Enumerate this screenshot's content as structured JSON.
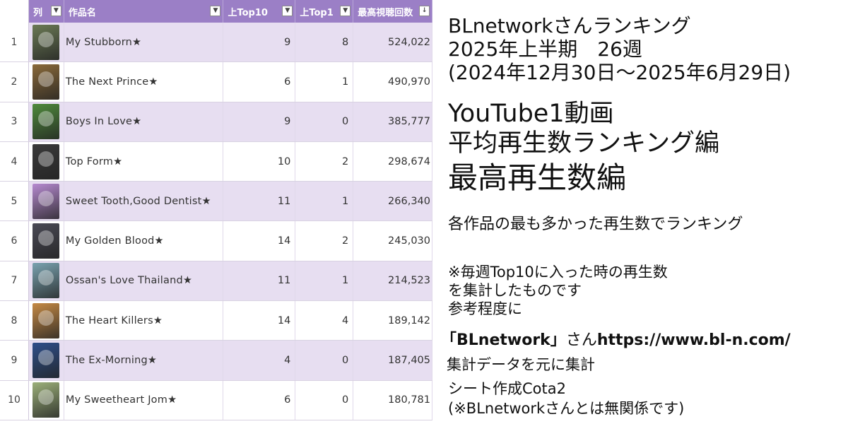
{
  "sheet": {
    "headers": {
      "rank": "列",
      "title": "作品名",
      "top10": "上Top10",
      "top1": "上Top1",
      "max": "最高視聴回数"
    },
    "rows": [
      {
        "num": "1",
        "title": "My Stubborn★",
        "top10": "9",
        "top1": "8",
        "max": "524,022",
        "thumb_color": "#6b7a55"
      },
      {
        "num": "2",
        "title": "The Next Prince★",
        "top10": "6",
        "top1": "1",
        "max": "490,970",
        "thumb_color": "#8a6a3a"
      },
      {
        "num": "3",
        "title": "Boys In Love★",
        "top10": "9",
        "top1": "0",
        "max": "385,777",
        "thumb_color": "#4f8a3c"
      },
      {
        "num": "4",
        "title": "Top Form★",
        "top10": "10",
        "top1": "2",
        "max": "298,674",
        "thumb_color": "#3a3a3a"
      },
      {
        "num": "5",
        "title": "Sweet Tooth,Good Dentist★",
        "top10": "11",
        "top1": "1",
        "max": "266,340",
        "thumb_color": "#b68ad0"
      },
      {
        "num": "6",
        "title": "My Golden Blood★",
        "top10": "14",
        "top1": "2",
        "max": "245,030",
        "thumb_color": "#4a4a55"
      },
      {
        "num": "7",
        "title": "Ossan's Love Thailand★",
        "top10": "11",
        "top1": "1",
        "max": "214,523",
        "thumb_color": "#7aa3b0"
      },
      {
        "num": "8",
        "title": "The Heart Killers★",
        "top10": "14",
        "top1": "4",
        "max": "189,142",
        "thumb_color": "#c58a45"
      },
      {
        "num": "9",
        "title": "The Ex-Morning★",
        "top10": "4",
        "top1": "0",
        "max": "187,405",
        "thumb_color": "#2e4f8a"
      },
      {
        "num": "10",
        "title": "My Sweetheart Jom★",
        "top10": "6",
        "top1": "0",
        "max": "180,781",
        "thumb_color": "#9cb07a"
      }
    ]
  },
  "info": {
    "line1": "BLnetworkさんランキング",
    "line2": "2025年上半期　26週",
    "line3": "(2024年12月30日〜2025年6月29日)",
    "line4": "YouTube1動画",
    "line5": "平均再生数ランキング編",
    "line6": "最高再生数編",
    "line7": "各作品の最も多かった再生数でランキング",
    "line8": "※毎週Top10に入った時の再生数",
    "line9": "を集計したものです",
    "line10": "参考程度に",
    "line11_a": "「BLnetwork」",
    "line11_b": "さん",
    "line11_c": "https://www.bl-n.com/",
    "line12": "集計データを元に集計",
    "line13": "シート作成Cota2",
    "line14": "(※BLnetworkさんとは無関係です)"
  },
  "colors": {
    "header_purple": "#9b7fc6",
    "band_lavender": "#e7def1"
  }
}
